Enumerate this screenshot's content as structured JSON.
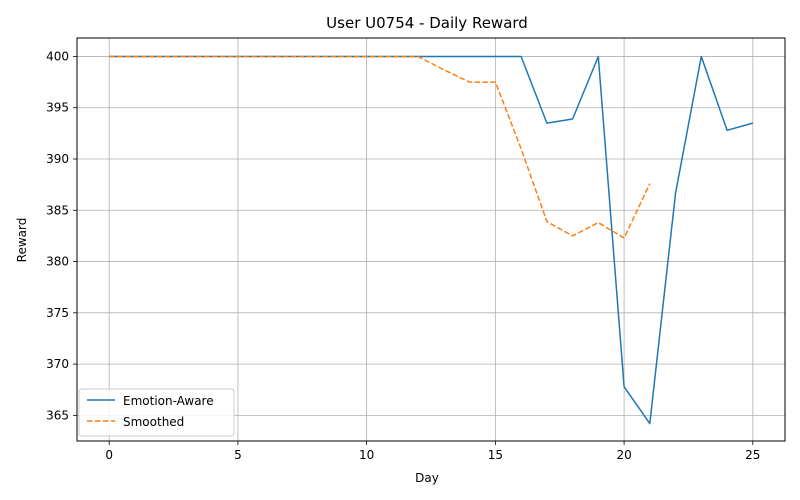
{
  "chart_data": {
    "type": "line",
    "title": "User U0754 - Daily Reward",
    "xlabel": "Day",
    "ylabel": "Reward",
    "xlim": [
      -1.25,
      26.25
    ],
    "ylim": [
      362.5,
      401.8
    ],
    "xticks": [
      0,
      5,
      10,
      15,
      20,
      25
    ],
    "yticks": [
      365,
      370,
      375,
      380,
      385,
      390,
      395,
      400
    ],
    "grid": true,
    "legend_position": "lower-left",
    "series": [
      {
        "name": "Emotion-Aware",
        "color": "#1f77b4",
        "style": "solid",
        "x": [
          0,
          1,
          2,
          3,
          4,
          5,
          6,
          7,
          8,
          9,
          10,
          11,
          12,
          13,
          14,
          15,
          16,
          17,
          18,
          19,
          20,
          21,
          22,
          23,
          24,
          25
        ],
        "values": [
          400,
          400,
          400,
          400,
          400,
          400,
          400,
          400,
          400,
          400,
          400,
          400,
          400,
          400,
          400,
          400,
          400,
          393.5,
          393.9,
          400,
          367.8,
          364.2,
          386.7,
          400,
          392.8,
          393.5
        ]
      },
      {
        "name": "Smoothed",
        "color": "#ff7f0e",
        "style": "dashed",
        "x": [
          0,
          1,
          2,
          3,
          4,
          5,
          6,
          7,
          8,
          9,
          10,
          11,
          12,
          13,
          14,
          15,
          16,
          17,
          18,
          19,
          20,
          21
        ],
        "values": [
          400,
          400,
          400,
          400,
          400,
          400,
          400,
          400,
          400,
          400,
          400,
          400,
          400,
          398.7,
          397.5,
          397.5,
          391,
          383.9,
          382.5,
          383.8,
          382.3,
          387.6
        ]
      }
    ]
  }
}
